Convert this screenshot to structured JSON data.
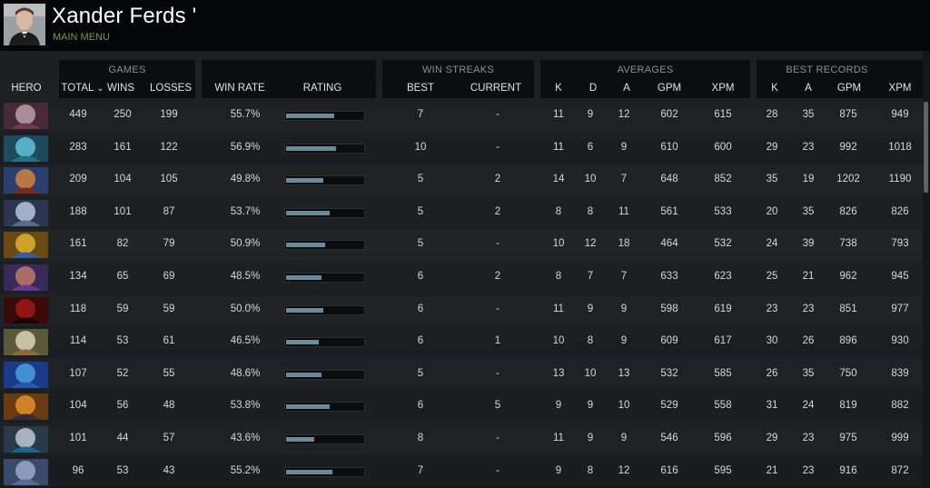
{
  "player": {
    "name": "Xander Ferds '",
    "main_menu_label": "MAIN MENU"
  },
  "groups": {
    "games": "GAMES",
    "win_streaks": "WIN STREAKS",
    "averages": "AVERAGES",
    "best_records": "BEST RECORDS"
  },
  "columns": {
    "hero": "HERO",
    "total": "TOTAL",
    "sort_arrow": "⌄",
    "wins": "WINS",
    "losses": "LOSSES",
    "win_rate": "WIN RATE",
    "rating": "RATING",
    "best": "BEST",
    "current": "CURRENT",
    "avg_k": "K",
    "avg_d": "D",
    "avg_a": "A",
    "avg_gpm": "GPM",
    "avg_xpm": "XPM",
    "rec_k": "K",
    "rec_a": "A",
    "rec_gpm": "GPM",
    "rec_xpm": "XPM"
  },
  "rows": [
    {
      "hero_colors": [
        "#4a2a3a",
        "#b8a0a8",
        "#6e3a4c"
      ],
      "total": "449",
      "wins": "250",
      "losses": "199",
      "win_rate": "55.7%",
      "rating": 0.62,
      "best": "7",
      "current": "-",
      "k": "11",
      "d": "9",
      "a": "12",
      "gpm": "602",
      "xpm": "615",
      "rk": "28",
      "ra": "35",
      "rgpm": "875",
      "rxpm": "949"
    },
    {
      "hero_colors": [
        "#1f4a5e",
        "#5fc3d8",
        "#2b6f84"
      ],
      "total": "283",
      "wins": "161",
      "losses": "122",
      "win_rate": "56.9%",
      "rating": 0.65,
      "best": "10",
      "current": "-",
      "k": "11",
      "d": "6",
      "a": "9",
      "gpm": "610",
      "xpm": "600",
      "rk": "29",
      "ra": "23",
      "rgpm": "992",
      "rxpm": "1018"
    },
    {
      "hero_colors": [
        "#2d3f6e",
        "#d0823a",
        "#7a2a22"
      ],
      "total": "209",
      "wins": "104",
      "losses": "105",
      "win_rate": "49.8%",
      "rating": 0.48,
      "best": "5",
      "current": "2",
      "k": "14",
      "d": "10",
      "a": "7",
      "gpm": "648",
      "xpm": "852",
      "rk": "35",
      "ra": "19",
      "rgpm": "1202",
      "rxpm": "1190"
    },
    {
      "hero_colors": [
        "#2c3650",
        "#b8c4dc",
        "#5a6a8c"
      ],
      "total": "188",
      "wins": "101",
      "losses": "87",
      "win_rate": "53.7%",
      "rating": 0.57,
      "best": "5",
      "current": "2",
      "k": "8",
      "d": "8",
      "a": "11",
      "gpm": "561",
      "xpm": "533",
      "rk": "20",
      "ra": "35",
      "rgpm": "826",
      "rxpm": "826"
    },
    {
      "hero_colors": [
        "#6a4a12",
        "#e0b030",
        "#3a5aa0"
      ],
      "total": "161",
      "wins": "82",
      "losses": "79",
      "win_rate": "50.9%",
      "rating": 0.5,
      "best": "5",
      "current": "-",
      "k": "10",
      "d": "12",
      "a": "18",
      "gpm": "464",
      "xpm": "532",
      "rk": "24",
      "ra": "39",
      "rgpm": "738",
      "rxpm": "793"
    },
    {
      "hero_colors": [
        "#3a2a5a",
        "#c07a6a",
        "#6a3a8a"
      ],
      "total": "134",
      "wins": "65",
      "losses": "69",
      "win_rate": "48.5%",
      "rating": 0.46,
      "best": "6",
      "current": "2",
      "k": "8",
      "d": "7",
      "a": "7",
      "gpm": "633",
      "xpm": "623",
      "rk": "25",
      "ra": "21",
      "rgpm": "962",
      "rxpm": "945"
    },
    {
      "hero_colors": [
        "#3a0a0a",
        "#a01818",
        "#1a0606"
      ],
      "total": "118",
      "wins": "59",
      "losses": "59",
      "win_rate": "50.0%",
      "rating": 0.48,
      "best": "6",
      "current": "-",
      "k": "11",
      "d": "9",
      "a": "9",
      "gpm": "598",
      "xpm": "619",
      "rk": "23",
      "ra": "23",
      "rgpm": "851",
      "rxpm": "977"
    },
    {
      "hero_colors": [
        "#5a5a3a",
        "#d8d4b8",
        "#8a6a3a"
      ],
      "total": "114",
      "wins": "53",
      "losses": "61",
      "win_rate": "46.5%",
      "rating": 0.42,
      "best": "6",
      "current": "1",
      "k": "10",
      "d": "8",
      "a": "9",
      "gpm": "609",
      "xpm": "617",
      "rk": "30",
      "ra": "26",
      "rgpm": "896",
      "rxpm": "930"
    },
    {
      "hero_colors": [
        "#1a3a8a",
        "#4aa0e0",
        "#2a5ab0"
      ],
      "total": "107",
      "wins": "52",
      "losses": "55",
      "win_rate": "48.6%",
      "rating": 0.46,
      "best": "5",
      "current": "-",
      "k": "13",
      "d": "10",
      "a": "13",
      "gpm": "532",
      "xpm": "585",
      "rk": "26",
      "ra": "35",
      "rgpm": "750",
      "rxpm": "839"
    },
    {
      "hero_colors": [
        "#6a3a12",
        "#e0902a",
        "#3a2a40"
      ],
      "total": "104",
      "wins": "56",
      "losses": "48",
      "win_rate": "53.8%",
      "rating": 0.57,
      "best": "6",
      "current": "5",
      "k": "9",
      "d": "9",
      "a": "10",
      "gpm": "529",
      "xpm": "558",
      "rk": "31",
      "ra": "24",
      "rgpm": "819",
      "rxpm": "882"
    },
    {
      "hero_colors": [
        "#2a3a4a",
        "#c0c8d0",
        "#1a6a8a"
      ],
      "total": "101",
      "wins": "44",
      "losses": "57",
      "win_rate": "43.6%",
      "rating": 0.37,
      "best": "8",
      "current": "-",
      "k": "11",
      "d": "9",
      "a": "9",
      "gpm": "546",
      "xpm": "596",
      "rk": "29",
      "ra": "23",
      "rgpm": "975",
      "rxpm": "999"
    },
    {
      "hero_colors": [
        "#3a4a6a",
        "#9aa8c8",
        "#5a6a90"
      ],
      "total": "96",
      "wins": "53",
      "losses": "43",
      "win_rate": "55.2%",
      "rating": 0.6,
      "best": "7",
      "current": "-",
      "k": "9",
      "d": "8",
      "a": "12",
      "gpm": "616",
      "xpm": "595",
      "rk": "21",
      "ra": "23",
      "rgpm": "916",
      "rxpm": "872"
    }
  ]
}
